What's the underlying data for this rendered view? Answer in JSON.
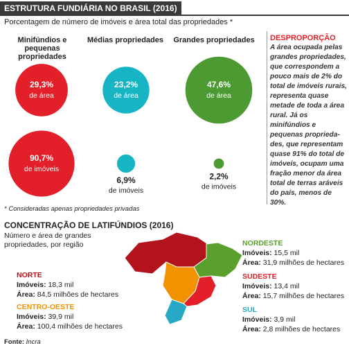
{
  "header": {
    "title": "ESTRUTURA FUNDIÁRIA NO BRASIL (2016)",
    "subtitle": "Porcentagem de número de imóveis e área total das propriedades *"
  },
  "groups": [
    {
      "name": "Minifúndios e pequenas propriedades",
      "color": "#e3202a",
      "area": {
        "value": 29.3,
        "label": "29,3%",
        "caption": "de área"
      },
      "count": {
        "value": 90.7,
        "label": "90,7%",
        "caption": "de imóveis"
      }
    },
    {
      "name": "Médias propriedades",
      "color": "#17b5c4",
      "area": {
        "value": 23.2,
        "label": "23,2%",
        "caption": "de área"
      },
      "count": {
        "value": 6.9,
        "label": "6,9%",
        "caption": "de imóveis"
      }
    },
    {
      "name": "Grandes propriedades",
      "color": "#4d9a32",
      "area": {
        "value": 47.6,
        "label": "47,6%",
        "caption": "de área"
      },
      "count": {
        "value": 2.2,
        "label": "2,2%",
        "caption": "de imóveis"
      }
    }
  ],
  "sidebar": {
    "title": "DESPROPORÇÃO",
    "text": "A área ocupada pelas grandes propriedades, que correspondem a pouco mais de 2% do total de imóveis rurais, representa quase metade de toda a área rural. Já os minifúndios e pequenas proprieda-des, que representam quase 91% do total de imóveis, ocupam uma fração menor da área total de terras aráveis do país, menos de 30%."
  },
  "footnote": "* Consideradas apenas propriedades privadas",
  "section": {
    "title": "CONCENTRAÇÃO DE LATIFÚNDIOS (2016)",
    "subtitle": "Número e área de grandes propriedades, por região",
    "count_label": "Imóveis:",
    "area_label": "Área:",
    "regions": [
      {
        "name": "NORTE",
        "color": "#b3141c",
        "count": "18,3 mil",
        "area": "84,5 milhões de hectares"
      },
      {
        "name": "CENTRO-OESTE",
        "color": "#f39200",
        "count": "39,9 mil",
        "area": "100,4 milhões de hectares"
      },
      {
        "name": "NORDESTE",
        "color": "#5aa02c",
        "count": "15,5 mil",
        "area": "31,9 milhões de hectares"
      },
      {
        "name": "SUDESTE",
        "color": "#e3202a",
        "count": "13,4 mil",
        "area": "15,7 milhões de hectares"
      },
      {
        "name": "SUL",
        "color": "#27a9c6",
        "count": "3,9 mil",
        "area": "2,8 milhões de hectares"
      }
    ]
  },
  "source": {
    "label": "Fonte:",
    "text": "Incra"
  }
}
